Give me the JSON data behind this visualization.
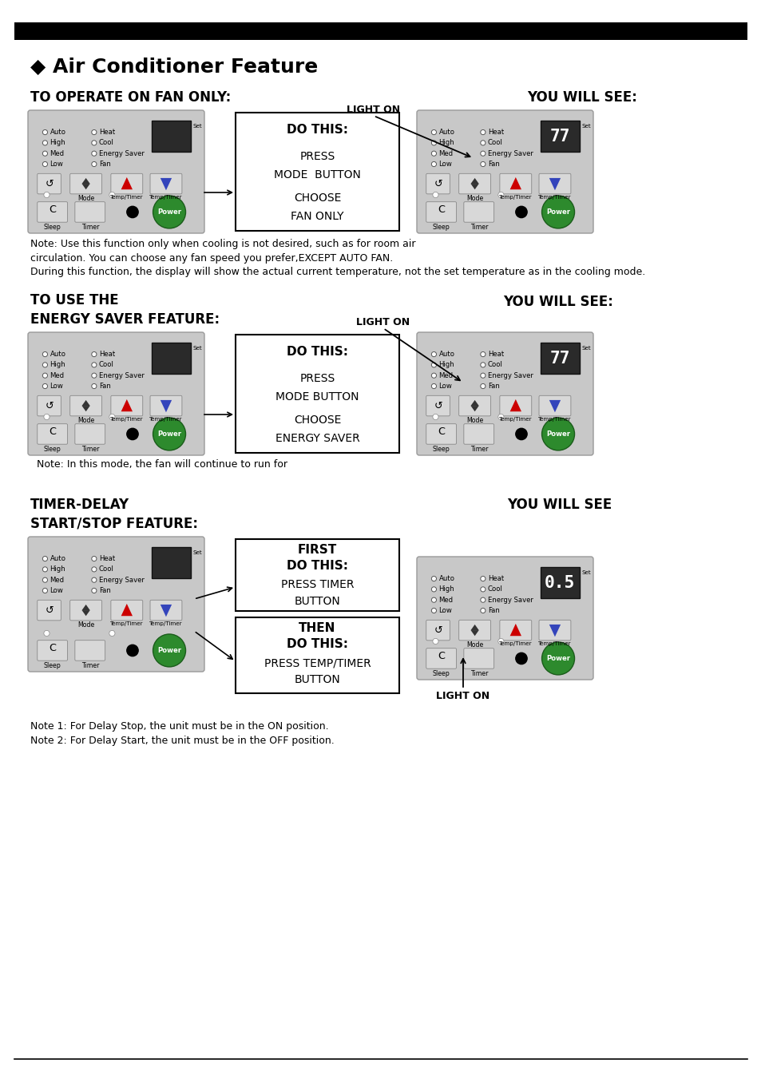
{
  "bg_color": "#ffffff",
  "page_title": "◆ Air Conditioner Feature",
  "top_bar_color": "#000000",
  "section1_heading": "TO OPERATE ON FAN ONLY:",
  "section1_right_heading": "YOU WILL SEE:",
  "section1_light_on": "LIGHT ON",
  "section1_note": "Note: Use this function only when cooling is not desired, such as for room air\ncirculation. You can choose any fan speed you prefer,EXCEPT AUTO FAN.\nDuring this function, the display will show the actual current temperature, not the set temperature as in the cooling mode.",
  "section2_heading1": "TO USE THE",
  "section2_heading2": "ENERGY SAVER FEATURE:",
  "section2_light_on": "LIGHT ON",
  "section2_right_heading": "YOU WILL SEE:",
  "section2_note": "  Note: In this mode, the fan will continue to run for",
  "section3_heading1": "TIMER-DELAY",
  "section3_heading2": "START/STOP FEATURE:",
  "section3_right_heading": "YOU WILL SEE",
  "section3_light_on": "LIGHT ON",
  "note1": "Note 1: For Delay Stop, the unit must be in the ON position.",
  "note2": "Note 2: For Delay Start, the unit must be in the OFF position.",
  "panel_bg": "#c8c8c8",
  "display_bg": "#2a2a2a",
  "button_green": "#2d8a2d",
  "arrow_up_color": "#cc0000",
  "arrow_down_color": "#3344bb"
}
